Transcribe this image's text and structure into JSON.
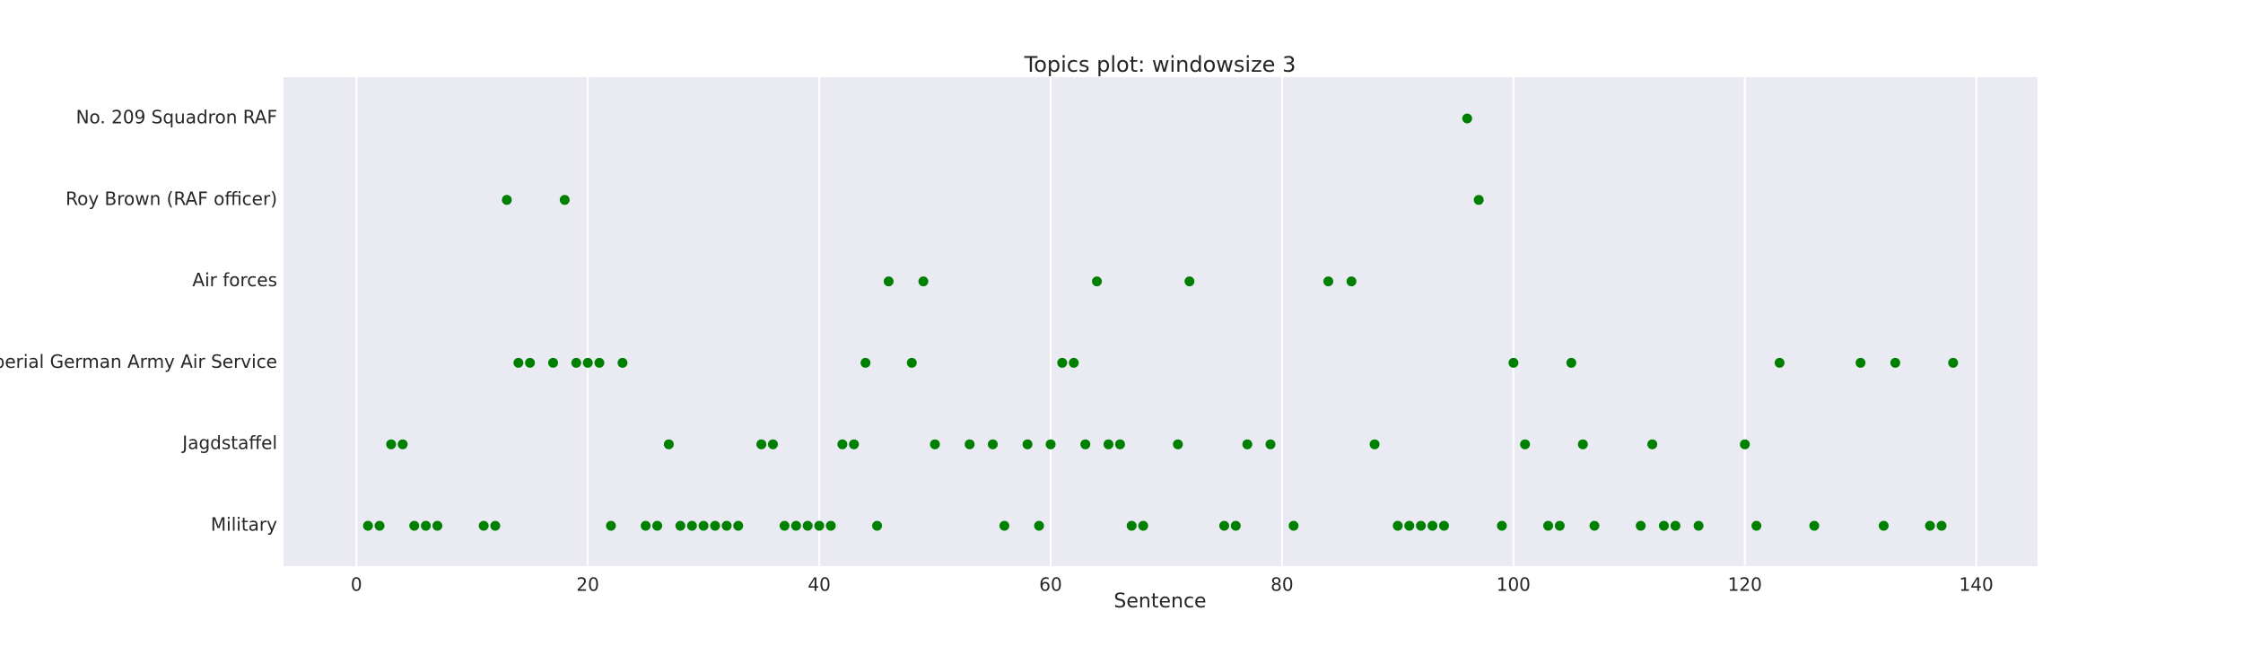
{
  "chart_data": {
    "type": "scatter",
    "title": "Topics plot: windowsize 3",
    "xlabel": "Sentence",
    "ylabel": "",
    "xlim": [
      -6.3,
      145.3
    ],
    "xticks": [
      0,
      20,
      40,
      60,
      80,
      100,
      120,
      140
    ],
    "grid": true,
    "colors": {
      "background": "#eaeaf2",
      "grid": "#ffffff",
      "marker": "#008000"
    },
    "categories": [
      "No. 209 Squadron RAF",
      "Roy Brown (RAF officer)",
      "Air forces",
      "Imperial German Army Air Service",
      "Jagdstaffel",
      "Military"
    ],
    "series": [
      {
        "category": "No. 209 Squadron RAF",
        "x": [
          96
        ]
      },
      {
        "category": "Roy Brown (RAF officer)",
        "x": [
          13,
          18,
          97
        ]
      },
      {
        "category": "Air forces",
        "x": [
          46,
          49,
          64,
          72,
          84,
          86
        ]
      },
      {
        "category": "Imperial German Army Air Service",
        "x": [
          14,
          15,
          17,
          19,
          20,
          21,
          23,
          44,
          48,
          61,
          62,
          100,
          105,
          123,
          130,
          133,
          138
        ]
      },
      {
        "category": "Jagdstaffel",
        "x": [
          3,
          4,
          27,
          35,
          36,
          42,
          43,
          50,
          53,
          55,
          58,
          60,
          63,
          65,
          66,
          71,
          77,
          79,
          88,
          101,
          106,
          112,
          120
        ]
      },
      {
        "category": "Military",
        "x": [
          1,
          2,
          5,
          6,
          7,
          11,
          12,
          22,
          25,
          26,
          28,
          29,
          30,
          31,
          32,
          33,
          37,
          38,
          39,
          40,
          41,
          45,
          56,
          59,
          67,
          68,
          75,
          76,
          81,
          90,
          91,
          92,
          93,
          94,
          99,
          103,
          104,
          107,
          111,
          113,
          114,
          116,
          121,
          126,
          132,
          136,
          137
        ]
      }
    ]
  }
}
